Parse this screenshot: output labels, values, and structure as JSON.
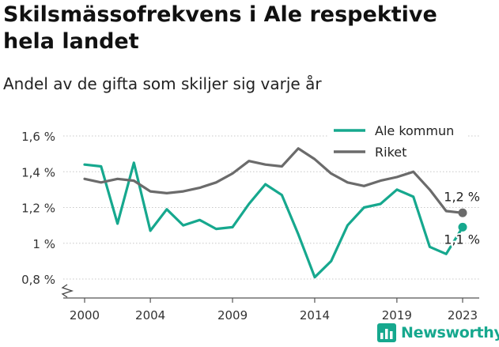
{
  "header": {
    "title": "Skilsmässofrekvens i Ale respektive hela landet",
    "subtitle": "Andel av de gifta som skiljer sig varje år"
  },
  "brand": {
    "logo_text": "Newsworthy",
    "icon": "bar-chart-icon"
  },
  "colors": {
    "ale": "#16a88e",
    "riket": "#6b6b6b",
    "grid": "#c8c8c8",
    "brand": "#16a88e"
  },
  "chart_data": {
    "type": "line",
    "title": "Skilsmässofrekvens i Ale respektive hela landet",
    "subtitle": "Andel av de gifta som skiljer sig varje år",
    "xlim": [
      2000,
      2023
    ],
    "ylim": [
      0.8,
      1.6
    ],
    "y_axis_break": true,
    "grid": "horizontal",
    "legend_position": "top-right",
    "x_ticks": [
      2000,
      2004,
      2009,
      2014,
      2019,
      2023
    ],
    "y_ticks": [
      {
        "value": 0.8,
        "label": "0,8 %"
      },
      {
        "value": 1.0,
        "label": "1 %"
      },
      {
        "value": 1.2,
        "label": "1,2 %"
      },
      {
        "value": 1.4,
        "label": "1,4 %"
      },
      {
        "value": 1.6,
        "label": "1,6 %"
      }
    ],
    "series": [
      {
        "name": "Ale kommun",
        "color": "#16a88e",
        "x": [
          2000,
          2001,
          2002,
          2003,
          2004,
          2005,
          2006,
          2007,
          2008,
          2009,
          2010,
          2011,
          2012,
          2013,
          2014,
          2015,
          2016,
          2017,
          2018,
          2019,
          2020,
          2021,
          2022,
          2023
        ],
        "values": [
          1.44,
          1.43,
          1.11,
          1.45,
          1.07,
          1.19,
          1.1,
          1.13,
          1.08,
          1.09,
          1.22,
          1.33,
          1.27,
          1.05,
          0.81,
          0.9,
          1.1,
          1.2,
          1.22,
          1.3,
          1.26,
          0.98,
          0.94,
          1.09
        ],
        "end_label": "1,1 %"
      },
      {
        "name": "Riket",
        "color": "#6b6b6b",
        "x": [
          2000,
          2001,
          2002,
          2003,
          2004,
          2005,
          2006,
          2007,
          2008,
          2009,
          2010,
          2011,
          2012,
          2013,
          2014,
          2015,
          2016,
          2017,
          2018,
          2019,
          2020,
          2021,
          2022,
          2023
        ],
        "values": [
          1.36,
          1.34,
          1.36,
          1.35,
          1.29,
          1.28,
          1.29,
          1.31,
          1.34,
          1.39,
          1.46,
          1.44,
          1.43,
          1.53,
          1.47,
          1.39,
          1.34,
          1.32,
          1.35,
          1.37,
          1.4,
          1.3,
          1.18,
          1.17
        ],
        "end_label": "1,2 %"
      }
    ]
  }
}
